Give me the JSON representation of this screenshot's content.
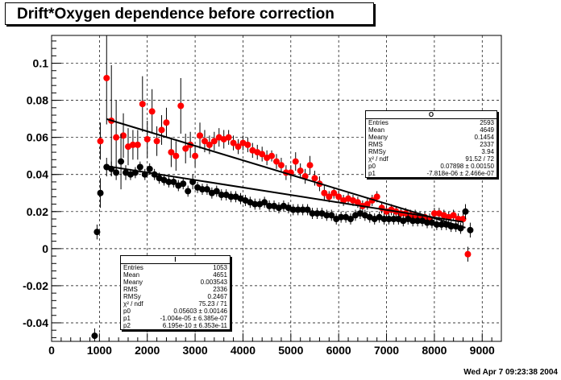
{
  "title": "Drift*Oxygen dependence before correction",
  "timestamp": "Wed Apr  7 09:23:38 2004",
  "chart_data": {
    "type": "scatter",
    "title": "Drift*Oxygen dependence before correction",
    "xlabel": "",
    "ylabel": "",
    "xlim": [
      0,
      9400
    ],
    "ylim": [
      -0.05,
      0.115
    ],
    "xticks": [
      0,
      1000,
      2000,
      3000,
      4000,
      5000,
      6000,
      7000,
      8000,
      9000
    ],
    "yticks": [
      -0.04,
      -0.02,
      0,
      0.02,
      0.04,
      0.06,
      0.08,
      0.1
    ],
    "ytick_labels": [
      "-0.04",
      "-0.02",
      "0",
      "0.02",
      "0.04",
      "0.06",
      "0.08",
      "0.1"
    ],
    "grid": true,
    "series": [
      {
        "color": "#ff0000",
        "points": [
          [
            1020,
            0.058,
            0.01
          ],
          [
            1150,
            0.092,
            0.025
          ],
          [
            1250,
            0.069,
            0.03
          ],
          [
            1350,
            0.06,
            0.02
          ],
          [
            1500,
            0.061,
            0.012
          ],
          [
            1600,
            0.055,
            0.01
          ],
          [
            1700,
            0.056,
            0.008
          ],
          [
            1800,
            0.056,
            0.008
          ],
          [
            1900,
            0.078,
            0.015
          ],
          [
            2000,
            0.059,
            0.01
          ],
          [
            2100,
            0.074,
            0.012
          ],
          [
            2200,
            0.058,
            0.008
          ],
          [
            2300,
            0.064,
            0.008
          ],
          [
            2400,
            0.068,
            0.008
          ],
          [
            2500,
            0.052,
            0.008
          ],
          [
            2600,
            0.05,
            0.008
          ],
          [
            2700,
            0.077,
            0.015
          ],
          [
            2800,
            0.054,
            0.008
          ],
          [
            2900,
            0.056,
            0.007
          ],
          [
            3000,
            0.05,
            0.006
          ],
          [
            3100,
            0.061,
            0.007
          ],
          [
            3200,
            0.058,
            0.006
          ],
          [
            3300,
            0.056,
            0.005
          ],
          [
            3400,
            0.058,
            0.005
          ],
          [
            3500,
            0.06,
            0.005
          ],
          [
            3600,
            0.059,
            0.005
          ],
          [
            3700,
            0.06,
            0.004
          ],
          [
            3800,
            0.057,
            0.004
          ],
          [
            3900,
            0.055,
            0.004
          ],
          [
            4000,
            0.057,
            0.004
          ],
          [
            4100,
            0.056,
            0.004
          ],
          [
            4200,
            0.053,
            0.004
          ],
          [
            4300,
            0.052,
            0.004
          ],
          [
            4400,
            0.051,
            0.004
          ],
          [
            4500,
            0.049,
            0.004
          ],
          [
            4600,
            0.05,
            0.003
          ],
          [
            4700,
            0.047,
            0.004
          ],
          [
            4800,
            0.045,
            0.004
          ],
          [
            4900,
            0.041,
            0.004
          ],
          [
            5000,
            0.041,
            0.004
          ],
          [
            5100,
            0.047,
            0.005
          ],
          [
            5200,
            0.042,
            0.004
          ],
          [
            5300,
            0.039,
            0.004
          ],
          [
            5400,
            0.045,
            0.005
          ],
          [
            5500,
            0.038,
            0.004
          ],
          [
            5600,
            0.035,
            0.004
          ],
          [
            5700,
            0.03,
            0.004
          ],
          [
            5800,
            0.028,
            0.003
          ],
          [
            5900,
            0.03,
            0.003
          ],
          [
            6000,
            0.028,
            0.003
          ],
          [
            6100,
            0.026,
            0.003
          ],
          [
            6200,
            0.027,
            0.003
          ],
          [
            6300,
            0.026,
            0.003
          ],
          [
            6400,
            0.025,
            0.003
          ],
          [
            6500,
            0.023,
            0.003
          ],
          [
            6600,
            0.024,
            0.003
          ],
          [
            6700,
            0.026,
            0.003
          ],
          [
            6800,
            0.028,
            0.003
          ],
          [
            6900,
            0.022,
            0.003
          ],
          [
            7000,
            0.02,
            0.003
          ],
          [
            7100,
            0.021,
            0.003
          ],
          [
            7200,
            0.02,
            0.003
          ],
          [
            7300,
            0.019,
            0.003
          ],
          [
            7400,
            0.019,
            0.003
          ],
          [
            7500,
            0.018,
            0.003
          ],
          [
            7600,
            0.018,
            0.003
          ],
          [
            7700,
            0.017,
            0.003
          ],
          [
            7800,
            0.017,
            0.003
          ],
          [
            7900,
            0.016,
            0.003
          ],
          [
            8000,
            0.019,
            0.003
          ],
          [
            8100,
            0.019,
            0.003
          ],
          [
            8200,
            0.018,
            0.003
          ],
          [
            8300,
            0.017,
            0.003
          ],
          [
            8400,
            0.018,
            0.003
          ],
          [
            8500,
            0.016,
            0.003
          ],
          [
            8600,
            0.016,
            0.004
          ],
          [
            8700,
            -0.003,
            0.004
          ]
        ],
        "fit": {
          "x": [
            1150,
            8650
          ],
          "y": [
            0.0699,
            0.0113
          ]
        }
      },
      {
        "color": "#000000",
        "points": [
          [
            900,
            -0.047,
            0.004
          ],
          [
            950,
            0.009,
            0.004
          ],
          [
            1020,
            0.03,
            0.008
          ],
          [
            1150,
            0.044,
            0.005
          ],
          [
            1250,
            0.043,
            0.004
          ],
          [
            1350,
            0.041,
            0.004
          ],
          [
            1450,
            0.047,
            0.015
          ],
          [
            1550,
            0.041,
            0.004
          ],
          [
            1650,
            0.04,
            0.003
          ],
          [
            1750,
            0.041,
            0.003
          ],
          [
            1850,
            0.044,
            0.003
          ],
          [
            1950,
            0.04,
            0.003
          ],
          [
            2050,
            0.043,
            0.003
          ],
          [
            2150,
            0.04,
            0.003
          ],
          [
            2250,
            0.038,
            0.003
          ],
          [
            2350,
            0.037,
            0.003
          ],
          [
            2450,
            0.036,
            0.003
          ],
          [
            2550,
            0.036,
            0.003
          ],
          [
            2650,
            0.034,
            0.003
          ],
          [
            2750,
            0.035,
            0.003
          ],
          [
            2850,
            0.031,
            0.003
          ],
          [
            2950,
            0.036,
            0.004
          ],
          [
            3050,
            0.033,
            0.003
          ],
          [
            3150,
            0.032,
            0.003
          ],
          [
            3250,
            0.032,
            0.003
          ],
          [
            3350,
            0.03,
            0.003
          ],
          [
            3450,
            0.031,
            0.003
          ],
          [
            3550,
            0.029,
            0.003
          ],
          [
            3650,
            0.029,
            0.003
          ],
          [
            3750,
            0.028,
            0.003
          ],
          [
            3850,
            0.028,
            0.003
          ],
          [
            3950,
            0.027,
            0.003
          ],
          [
            4050,
            0.026,
            0.003
          ],
          [
            4150,
            0.025,
            0.003
          ],
          [
            4250,
            0.024,
            0.003
          ],
          [
            4350,
            0.024,
            0.003
          ],
          [
            4450,
            0.025,
            0.003
          ],
          [
            4550,
            0.023,
            0.003
          ],
          [
            4650,
            0.023,
            0.003
          ],
          [
            4750,
            0.022,
            0.003
          ],
          [
            4850,
            0.023,
            0.003
          ],
          [
            4950,
            0.022,
            0.003
          ],
          [
            5050,
            0.021,
            0.003
          ],
          [
            5150,
            0.021,
            0.003
          ],
          [
            5250,
            0.021,
            0.003
          ],
          [
            5350,
            0.021,
            0.003
          ],
          [
            5450,
            0.019,
            0.003
          ],
          [
            5550,
            0.019,
            0.003
          ],
          [
            5650,
            0.019,
            0.003
          ],
          [
            5750,
            0.018,
            0.003
          ],
          [
            5850,
            0.018,
            0.003
          ],
          [
            5950,
            0.016,
            0.003
          ],
          [
            6050,
            0.017,
            0.003
          ],
          [
            6150,
            0.017,
            0.003
          ],
          [
            6250,
            0.016,
            0.003
          ],
          [
            6350,
            0.018,
            0.003
          ],
          [
            6450,
            0.019,
            0.003
          ],
          [
            6550,
            0.018,
            0.003
          ],
          [
            6650,
            0.017,
            0.003
          ],
          [
            6750,
            0.016,
            0.003
          ],
          [
            6850,
            0.017,
            0.003
          ],
          [
            6950,
            0.016,
            0.003
          ],
          [
            7050,
            0.016,
            0.003
          ],
          [
            7150,
            0.016,
            0.003
          ],
          [
            7250,
            0.016,
            0.003
          ],
          [
            7350,
            0.015,
            0.003
          ],
          [
            7450,
            0.016,
            0.003
          ],
          [
            7550,
            0.015,
            0.003
          ],
          [
            7650,
            0.015,
            0.003
          ],
          [
            7750,
            0.015,
            0.003
          ],
          [
            7850,
            0.014,
            0.003
          ],
          [
            7950,
            0.014,
            0.003
          ],
          [
            8050,
            0.013,
            0.003
          ],
          [
            8150,
            0.013,
            0.003
          ],
          [
            8250,
            0.013,
            0.003
          ],
          [
            8350,
            0.012,
            0.003
          ],
          [
            8450,
            0.012,
            0.003
          ],
          [
            8550,
            0.011,
            0.003
          ],
          [
            8650,
            0.02,
            0.004
          ],
          [
            8750,
            0.01,
            0.004
          ]
        ],
        "fit": {
          "x": [
            1100,
            8600
          ],
          "y": [
            0.0447,
            0.0144
          ]
        }
      }
    ]
  },
  "stats_boxes": [
    {
      "header": "O",
      "rows": [
        [
          "Entries",
          "2593"
        ],
        [
          "Mean",
          "4649"
        ],
        [
          "Meany",
          "0.1454"
        ],
        [
          "RMS",
          "2337"
        ],
        [
          "RMSy",
          "3.94"
        ],
        [
          "χ² / ndf",
          "91.52 / 72"
        ],
        [
          "p0",
          "0.07898 ± 0.00150"
        ],
        [
          "p1",
          "-7.818e-06 ± 2.466e-07"
        ]
      ]
    },
    {
      "header": "I",
      "rows": [
        [
          "Entries",
          "1053"
        ],
        [
          "Mean",
          "4651"
        ],
        [
          "Meany",
          "0.003543"
        ],
        [
          "RMS",
          "2336"
        ],
        [
          "RMSy",
          "0.2467"
        ],
        [
          "χ² / ndf",
          "75.23 / 71"
        ],
        [
          "p0",
          "0.05603 ± 0.00146"
        ],
        [
          "p1",
          "-1.004e-05 ± 6.385e-07"
        ],
        [
          "p2",
          "6.195e-10 ± 6.353e-11"
        ]
      ]
    }
  ]
}
